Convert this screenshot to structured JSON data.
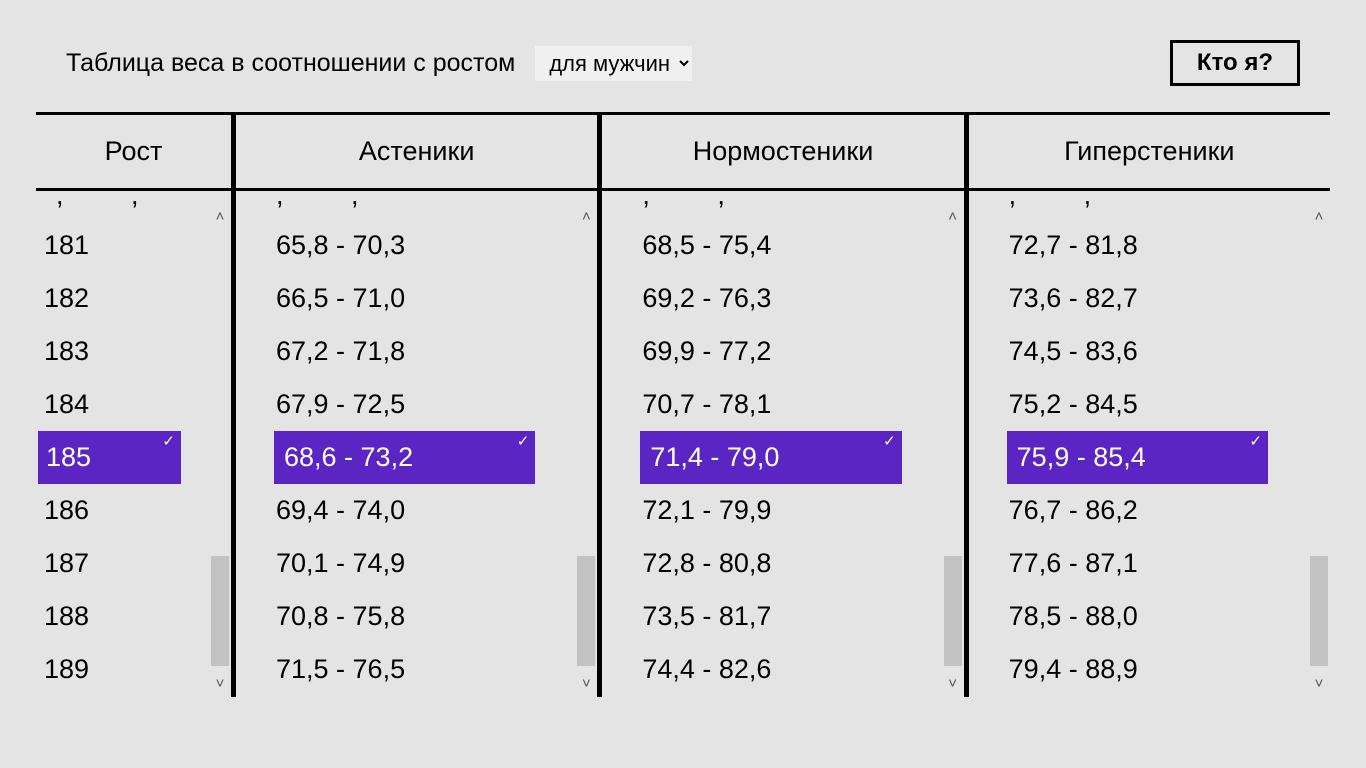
{
  "colors": {
    "background": "#e4e4e4",
    "text": "#000000",
    "selected_bg": "#5a25c2",
    "selected_text": "#ffffff",
    "scrollbar_thumb": "#c2c2c2",
    "scrollbar_arrow": "#555555",
    "border": "#000000"
  },
  "topbar": {
    "title": "Таблица веса в соотношении с ростом",
    "gender_selected": "для мужчин",
    "who_button": "Кто я?"
  },
  "headers": {
    "height": "Рост",
    "asthenic": "Астеники",
    "normosthenic": "Нормостеники",
    "hypersthenic": "Гиперстеники"
  },
  "cut_marker": ", ,",
  "selected_index": 4,
  "rows": [
    {
      "height": "181",
      "a": "65,8 - 70,3",
      "n": "68,5 - 75,4",
      "h": "72,7 - 81,8"
    },
    {
      "height": "182",
      "a": "66,5 - 71,0",
      "n": "69,2 - 76,3",
      "h": "73,6 - 82,7"
    },
    {
      "height": "183",
      "a": "67,2 - 71,8",
      "n": "69,9 - 77,2",
      "h": "74,5 - 83,6"
    },
    {
      "height": "184",
      "a": "67,9 - 72,5",
      "n": "70,7 - 78,1",
      "h": "75,2 - 84,5"
    },
    {
      "height": "185",
      "a": "68,6 - 73,2",
      "n": "71,4 - 79,0",
      "h": "75,9 - 85,4"
    },
    {
      "height": "186",
      "a": "69,4 - 74,0",
      "n": "72,1 - 79,9",
      "h": "76,7 - 86,2"
    },
    {
      "height": "187",
      "a": "70,1 - 74,9",
      "n": "72,8 - 80,8",
      "h": "77,6 - 87,1"
    },
    {
      "height": "188",
      "a": "70,8 - 75,8",
      "n": "73,5 - 81,7",
      "h": "78,5 - 88,0"
    },
    {
      "height": "189",
      "a": "71,5 - 76,5",
      "n": "74,4 - 82,6",
      "h": "79,4 - 88,9"
    }
  ]
}
